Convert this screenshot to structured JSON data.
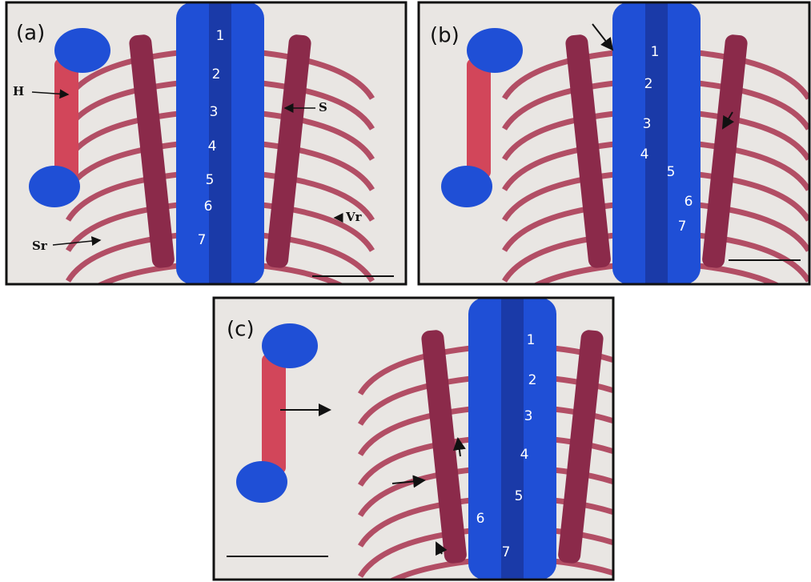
{
  "panels": [
    {
      "label": "(a)",
      "vertebrae": [
        "1",
        "2",
        "3",
        "4",
        "5",
        "6",
        "7"
      ],
      "annotations": [
        "H",
        "S",
        "Vr",
        "Sr"
      ]
    },
    {
      "label": "(b)",
      "vertebrae": [
        "1",
        "2",
        "3",
        "4",
        "5",
        "6",
        "7"
      ]
    },
    {
      "label": "(c)",
      "vertebrae": [
        "1",
        "2",
        "3",
        "4",
        "5",
        "6",
        "7"
      ]
    }
  ]
}
